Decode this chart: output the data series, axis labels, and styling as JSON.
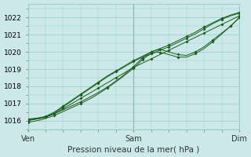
{
  "xlabel": "Pression niveau de la mer( hPa )",
  "bg_color": "#cce8e8",
  "grid_color": "#99cccc",
  "line_color": "#1a5c1a",
  "ylim": [
    1015.5,
    1022.8
  ],
  "xlim": [
    0,
    48
  ],
  "yticks": [
    1016,
    1017,
    1018,
    1019,
    1020,
    1021,
    1022
  ],
  "xtick_positions": [
    0,
    24,
    48
  ],
  "xtick_labels": [
    "Ven",
    "Sam",
    "Dim"
  ],
  "vlines": [
    0,
    24,
    48
  ],
  "series": [
    {
      "x": [
        0,
        2,
        4,
        6,
        8,
        10,
        12,
        14,
        16,
        18,
        20,
        22,
        24,
        26,
        28,
        30,
        32,
        34,
        36,
        38,
        40,
        42,
        44,
        46,
        48
      ],
      "y": [
        1016.05,
        1016.1,
        1016.2,
        1016.4,
        1016.7,
        1017.0,
        1017.3,
        1017.6,
        1017.9,
        1018.2,
        1018.5,
        1018.8,
        1019.1,
        1019.35,
        1019.6,
        1019.85,
        1020.1,
        1020.35,
        1020.6,
        1020.85,
        1021.1,
        1021.35,
        1021.6,
        1021.85,
        1022.1
      ]
    },
    {
      "x": [
        0,
        3,
        6,
        9,
        12,
        15,
        18,
        21,
        24,
        25,
        26,
        27,
        28,
        29,
        30,
        32,
        34,
        36,
        38,
        40,
        42,
        44,
        46,
        48
      ],
      "y": [
        1016.05,
        1016.15,
        1016.4,
        1016.75,
        1017.1,
        1017.5,
        1017.95,
        1018.5,
        1019.15,
        1019.4,
        1019.65,
        1019.85,
        1020.0,
        1020.1,
        1020.15,
        1020.0,
        1019.85,
        1019.8,
        1020.0,
        1020.3,
        1020.7,
        1021.1,
        1021.5,
        1022.0
      ]
    },
    {
      "x": [
        0,
        3,
        6,
        9,
        12,
        15,
        18,
        21,
        24,
        25,
        26,
        27,
        28,
        29,
        30,
        32,
        34,
        36,
        38,
        40,
        42,
        44,
        46,
        48
      ],
      "y": [
        1015.9,
        1016.05,
        1016.3,
        1016.65,
        1017.0,
        1017.4,
        1017.9,
        1018.45,
        1019.05,
        1019.3,
        1019.55,
        1019.75,
        1019.9,
        1019.98,
        1019.98,
        1019.85,
        1019.7,
        1019.7,
        1019.9,
        1020.2,
        1020.6,
        1021.05,
        1021.5,
        1022.0
      ]
    },
    {
      "x": [
        0,
        2,
        4,
        6,
        8,
        10,
        12,
        14,
        16,
        18,
        20,
        22,
        24,
        26,
        28,
        30,
        32,
        34,
        36,
        38,
        40,
        42,
        44,
        46,
        48
      ],
      "y": [
        1016.0,
        1016.1,
        1016.2,
        1016.45,
        1016.8,
        1017.15,
        1017.5,
        1017.85,
        1018.2,
        1018.55,
        1018.85,
        1019.15,
        1019.45,
        1019.7,
        1019.9,
        1020.1,
        1020.3,
        1020.55,
        1020.8,
        1021.05,
        1021.35,
        1021.65,
        1021.9,
        1022.1,
        1022.25
      ]
    },
    {
      "x": [
        0,
        2,
        4,
        6,
        8,
        10,
        12,
        14,
        16,
        18,
        20,
        22,
        24,
        26,
        28,
        30,
        32,
        34,
        36,
        38,
        40,
        42,
        44,
        46,
        48
      ],
      "y": [
        1016.1,
        1016.15,
        1016.25,
        1016.5,
        1016.85,
        1017.2,
        1017.55,
        1017.9,
        1018.25,
        1018.6,
        1018.9,
        1019.2,
        1019.5,
        1019.75,
        1020.0,
        1020.2,
        1020.4,
        1020.65,
        1020.9,
        1021.15,
        1021.45,
        1021.7,
        1021.95,
        1022.15,
        1022.3
      ]
    }
  ],
  "markers": [
    {
      "x": [
        0,
        4,
        8,
        12,
        16,
        20,
        24,
        28,
        32,
        36,
        40,
        44,
        48
      ],
      "y": [
        1016.05,
        1016.2,
        1016.7,
        1017.3,
        1017.9,
        1018.5,
        1019.1,
        1019.6,
        1020.1,
        1020.6,
        1021.1,
        1021.6,
        1022.1
      ]
    },
    {
      "x": [
        0,
        6,
        12,
        18,
        24,
        26,
        28,
        30,
        34,
        38,
        42,
        46,
        48
      ],
      "y": [
        1016.05,
        1016.4,
        1017.1,
        1017.95,
        1019.15,
        1019.65,
        1020.0,
        1020.15,
        1019.85,
        1020.0,
        1020.7,
        1021.5,
        1022.0
      ]
    },
    {
      "x": [
        0,
        6,
        12,
        18,
        24,
        26,
        28,
        30,
        34,
        38,
        42,
        46,
        48
      ],
      "y": [
        1015.9,
        1016.3,
        1017.0,
        1017.9,
        1019.05,
        1019.55,
        1019.9,
        1019.98,
        1019.7,
        1019.9,
        1020.6,
        1021.5,
        1022.0
      ]
    },
    {
      "x": [
        0,
        4,
        8,
        12,
        16,
        20,
        24,
        28,
        32,
        36,
        40,
        44,
        48
      ],
      "y": [
        1016.0,
        1016.2,
        1016.8,
        1017.5,
        1018.2,
        1018.85,
        1019.45,
        1019.9,
        1020.3,
        1020.8,
        1021.35,
        1021.9,
        1022.25
      ]
    },
    {
      "x": [
        0,
        4,
        8,
        12,
        16,
        20,
        24,
        28,
        32,
        36,
        40,
        44,
        48
      ],
      "y": [
        1016.1,
        1016.25,
        1016.85,
        1017.55,
        1018.25,
        1018.9,
        1019.5,
        1020.0,
        1020.4,
        1020.9,
        1021.45,
        1021.95,
        1022.3
      ]
    }
  ]
}
